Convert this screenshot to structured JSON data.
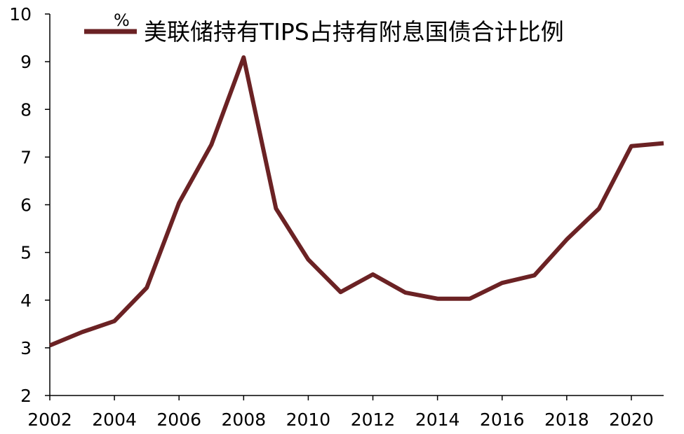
{
  "chart_data": {
    "type": "line",
    "title": "",
    "xlabel": "",
    "ylabel": "",
    "unit": "%",
    "xlim": [
      2002,
      2021
    ],
    "ylim": [
      2,
      10
    ],
    "yticks": [
      2,
      3,
      4,
      5,
      6,
      7,
      8,
      9,
      10
    ],
    "ytick_labels": [
      "2",
      "3",
      "4",
      "5",
      "6",
      "7",
      "8",
      "9",
      "10"
    ],
    "xticks": [
      2002,
      2004,
      2006,
      2008,
      2010,
      2012,
      2014,
      2016,
      2018,
      2020
    ],
    "xtick_labels": [
      "2002",
      "2004",
      "2006",
      "2008",
      "2010",
      "2012",
      "2014",
      "2016",
      "2018",
      "2020"
    ],
    "grid": false,
    "legend_position": "top",
    "series": [
      {
        "name": "美联储持有TIPS占持有附息国债合计比例",
        "color": "#6b2224",
        "x": [
          2002,
          2003,
          2004,
          2005,
          2006,
          2007,
          2008,
          2009,
          2010,
          2011,
          2012,
          2013,
          2014,
          2015,
          2016,
          2017,
          2018,
          2019,
          2020,
          2021
        ],
        "y": [
          3.05,
          3.33,
          3.56,
          4.26,
          6.04,
          7.26,
          9.09,
          5.92,
          4.85,
          4.17,
          4.54,
          4.16,
          4.03,
          4.03,
          4.36,
          4.52,
          5.27,
          5.92,
          7.23,
          7.29
        ]
      }
    ]
  }
}
